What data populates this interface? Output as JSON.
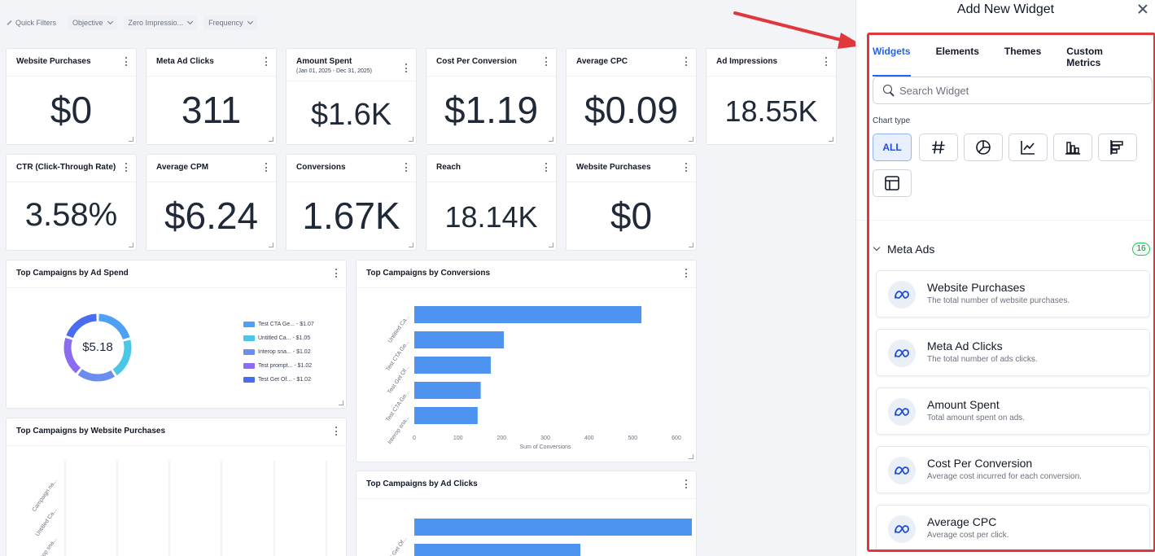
{
  "filters": {
    "quick": "Quick Filters",
    "objective": "Objective",
    "zero_impressions": "Zero Impressio...",
    "frequency": "Frequency"
  },
  "kpis": [
    {
      "title": "Website Purchases",
      "value": "$0"
    },
    {
      "title": "Meta Ad Clicks",
      "value": "311"
    },
    {
      "title": "Amount Spent",
      "subtitle": "(Jan 01, 2025 - Dec 31, 2025)",
      "value": "$1.6K"
    },
    {
      "title": "Cost Per Conversion",
      "value": "$1.19"
    },
    {
      "title": "Average CPC",
      "value": "$0.09"
    },
    {
      "title": "Ad Impressions",
      "value": "18.55K"
    },
    {
      "title": "CTR (Click-Through Rate)",
      "value": "3.58%"
    },
    {
      "title": "Average CPM",
      "value": "$6.24"
    },
    {
      "title": "Conversions",
      "value": "1.67K"
    },
    {
      "title": "Reach",
      "value": "18.14K"
    },
    {
      "title": "Website Purchases",
      "value": "$0"
    }
  ],
  "spend_card": {
    "title": "Top Campaigns by Ad Spend",
    "total": "$5.18"
  },
  "conv_card": {
    "title": "Top Campaigns by Conversions"
  },
  "wp_card": {
    "title": "Top Campaigns by Website Purchases"
  },
  "clicks_card": {
    "title": "Top Campaigns by Ad Clicks"
  },
  "chart_data": [
    {
      "type": "pie",
      "title": "Top Campaigns by Ad Spend",
      "center_label": "$5.18",
      "categories": [
        "Test CTA Ge...",
        "Untitled Ca...",
        "Interop sna...",
        "Test prompt...",
        "Test Get Of..."
      ],
      "value_labels": [
        "$1.07",
        "$1.05",
        "$1.02",
        "$1.02",
        "$1.02"
      ],
      "values": [
        1.07,
        1.05,
        1.02,
        1.02,
        1.02
      ],
      "colors": [
        "#4ea0f5",
        "#4cc6e6",
        "#6c8cf0",
        "#8b6cf0",
        "#4a6cf0"
      ],
      "legend": "right"
    },
    {
      "type": "bar",
      "orientation": "horizontal",
      "title": "Top Campaigns by Conversions",
      "categories": [
        "Untitled Ca...",
        "Test CTA Ge...",
        "Test Get Of...",
        "Test CTA Ge...",
        "Interop sna..."
      ],
      "values": [
        520,
        205,
        175,
        152,
        145
      ],
      "xlabel": "Sum of Conversions",
      "xticks": [
        0,
        100,
        200,
        300,
        400,
        500,
        600
      ],
      "xlim": [
        0,
        600
      ],
      "color": "#4e93f0"
    },
    {
      "type": "bar",
      "title": "Top Campaigns by Website Purchases",
      "categories": [
        "Campaign na...",
        "Untitled Ca...",
        "Interop sna..."
      ]
    },
    {
      "type": "bar",
      "orientation": "horizontal",
      "title": "Top Campaigns by Ad Clicks",
      "categories": [
        "Test Get Of..."
      ],
      "xlim": [
        0,
        600
      ],
      "color": "#4e93f0"
    }
  ],
  "panel": {
    "title": "Add New Widget",
    "tabs": [
      "Widgets",
      "Elements",
      "Themes",
      "Custom Metrics"
    ],
    "search_placeholder": "Search Widget",
    "chart_type_label": "Chart type",
    "chart_types": [
      "ALL",
      "number-icon",
      "pie-chart-icon",
      "line-chart-icon",
      "bar-chart-icon",
      "horizontal-bar-icon",
      "table-icon"
    ],
    "group": {
      "name": "Meta Ads",
      "count": "16"
    },
    "widgets": [
      {
        "title": "Website Purchases",
        "desc": "The total number of website purchases."
      },
      {
        "title": "Meta Ad Clicks",
        "desc": "The total number of ads clicks."
      },
      {
        "title": "Amount Spent",
        "desc": "Total amount spent on ads."
      },
      {
        "title": "Cost Per Conversion",
        "desc": "Average cost incurred for each conversion."
      },
      {
        "title": "Average CPC",
        "desc": "Average cost per click."
      }
    ],
    "accent": "#2563eb",
    "highlight_color": "#e2373a"
  }
}
